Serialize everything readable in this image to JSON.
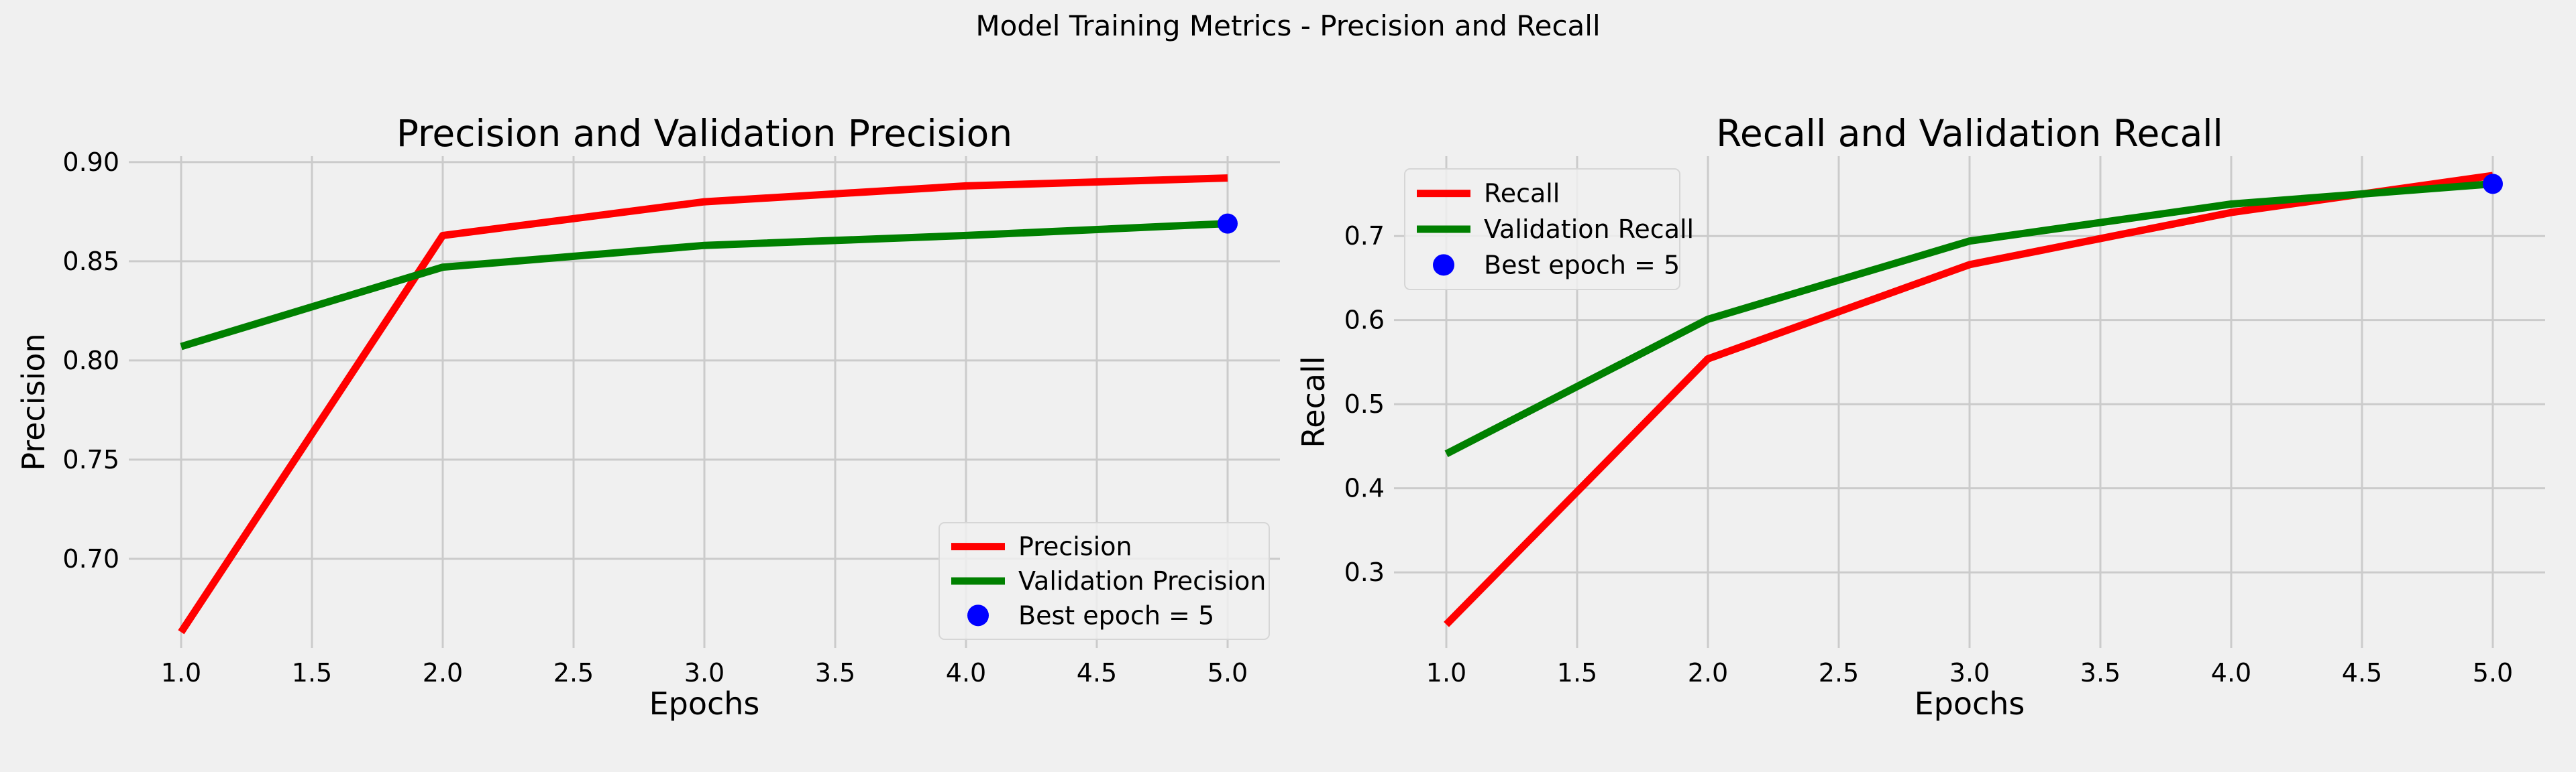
{
  "figure": {
    "suptitle": "Model Training Metrics - Precision and Recall"
  },
  "colors": {
    "background": "#f0f0f0",
    "grid": "#cbcbcb",
    "training": "#ff0000",
    "validation": "#008000",
    "best_marker": "#0000ff"
  },
  "chart_data": [
    {
      "type": "line",
      "title": "Precision and Validation Precision",
      "xlabel": "Epochs",
      "ylabel": "Precision",
      "x": [
        1,
        2,
        3,
        4,
        5
      ],
      "xticks": [
        "1.0",
        "1.5",
        "2.0",
        "2.5",
        "3.0",
        "3.5",
        "4.0",
        "4.5",
        "5.0"
      ],
      "yticks": [
        "0.70",
        "0.75",
        "0.80",
        "0.85",
        "0.90"
      ],
      "xlim": [
        0.8,
        5.2
      ],
      "ylim": [
        0.655,
        0.903
      ],
      "grid": true,
      "legend_position": "lower-right",
      "series": [
        {
          "name": "Precision",
          "color": "#ff0000",
          "values": [
            0.663,
            0.863,
            0.88,
            0.888,
            0.892
          ]
        },
        {
          "name": "Validation Precision",
          "color": "#008000",
          "values": [
            0.807,
            0.847,
            0.858,
            0.863,
            0.869
          ]
        }
      ],
      "best_point": {
        "name": "Best epoch = 5",
        "color": "#0000ff",
        "x": 5,
        "y": 0.869
      }
    },
    {
      "type": "line",
      "title": "Recall and Validation Recall",
      "xlabel": "Epochs",
      "ylabel": "Recall",
      "x": [
        1,
        2,
        3,
        4,
        5
      ],
      "xticks": [
        "1.0",
        "1.5",
        "2.0",
        "2.5",
        "3.0",
        "3.5",
        "4.0",
        "4.5",
        "5.0"
      ],
      "yticks": [
        "0.3",
        "0.4",
        "0.5",
        "0.6",
        "0.7"
      ],
      "xlim": [
        0.8,
        5.2
      ],
      "ylim": [
        0.21,
        0.795
      ],
      "grid": true,
      "legend_position": "upper-left",
      "series": [
        {
          "name": "Recall",
          "color": "#ff0000",
          "values": [
            0.238,
            0.554,
            0.666,
            0.728,
            0.772
          ]
        },
        {
          "name": "Validation Recall",
          "color": "#008000",
          "values": [
            0.441,
            0.601,
            0.694,
            0.738,
            0.762
          ]
        }
      ],
      "best_point": {
        "name": "Best epoch = 5",
        "color": "#0000ff",
        "x": 5,
        "y": 0.762
      }
    }
  ]
}
